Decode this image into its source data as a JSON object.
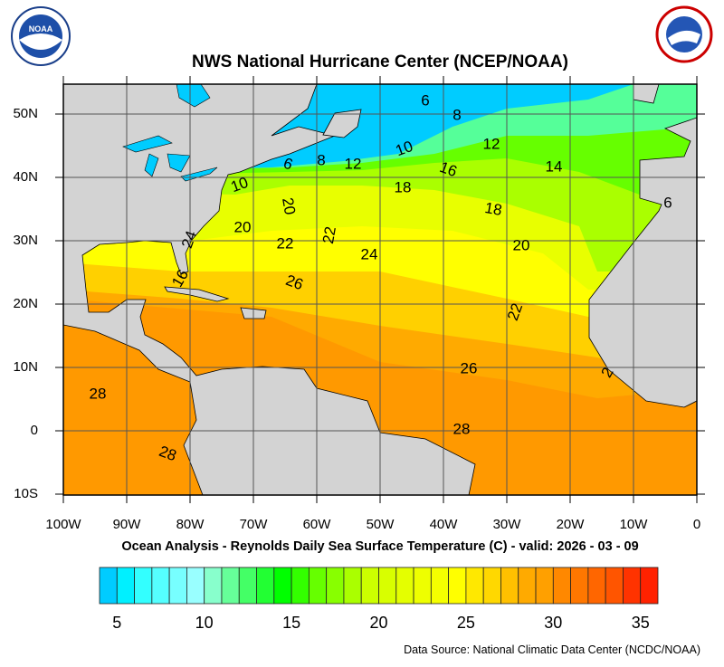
{
  "header": {
    "title": "NWS National Hurricane Center (NCEP/NOAA)",
    "left_logo": "NOAA",
    "right_logo": "NATIONAL WEATHER SERVICE"
  },
  "map": {
    "lat_labels": [
      "50N",
      "40N",
      "30N",
      "20N",
      "10N",
      "0",
      "10S"
    ],
    "lon_labels": [
      "100W",
      "90W",
      "80W",
      "70W",
      "60W",
      "50W",
      "40W",
      "30W",
      "20W",
      "10W",
      "0"
    ],
    "contour_labels": [
      "6",
      "8",
      "12",
      "14",
      "10",
      "16",
      "18",
      "18",
      "6",
      "8",
      "12",
      "10",
      "20",
      "20",
      "24",
      "22",
      "22",
      "24",
      "20",
      "6",
      "16",
      "26",
      "22",
      "26",
      "2",
      "28",
      "28",
      "28"
    ],
    "land_color": "#d3d3d3",
    "lake_color": "#00ccff"
  },
  "caption": "Ocean Analysis - Reynolds Daily Sea Surface Temperature (C) - valid: 2026 - 03 - 09",
  "colorbar": {
    "labels": [
      "5",
      "10",
      "15",
      "20",
      "25",
      "30",
      "35"
    ],
    "colors": [
      "#00ccff",
      "#00f0ff",
      "#33ffff",
      "#55ffff",
      "#77ffff",
      "#99ffff",
      "#88ffcc",
      "#66ff99",
      "#44ff66",
      "#22ff33",
      "#00ff00",
      "#33ff00",
      "#66ff00",
      "#88ff00",
      "#aaff00",
      "#ccff00",
      "#d8ff00",
      "#e4ff00",
      "#eeff00",
      "#f5ff00",
      "#ffff00",
      "#ffe800",
      "#ffd800",
      "#ffc000",
      "#ffaa00",
      "#ffa000",
      "#ff8800",
      "#ff7700",
      "#ff6600",
      "#ff5500",
      "#ff3300",
      "#ff2200"
    ]
  },
  "footer": {
    "source": "Data Source: National Climatic Data Center (NCDC/NOAA)"
  }
}
